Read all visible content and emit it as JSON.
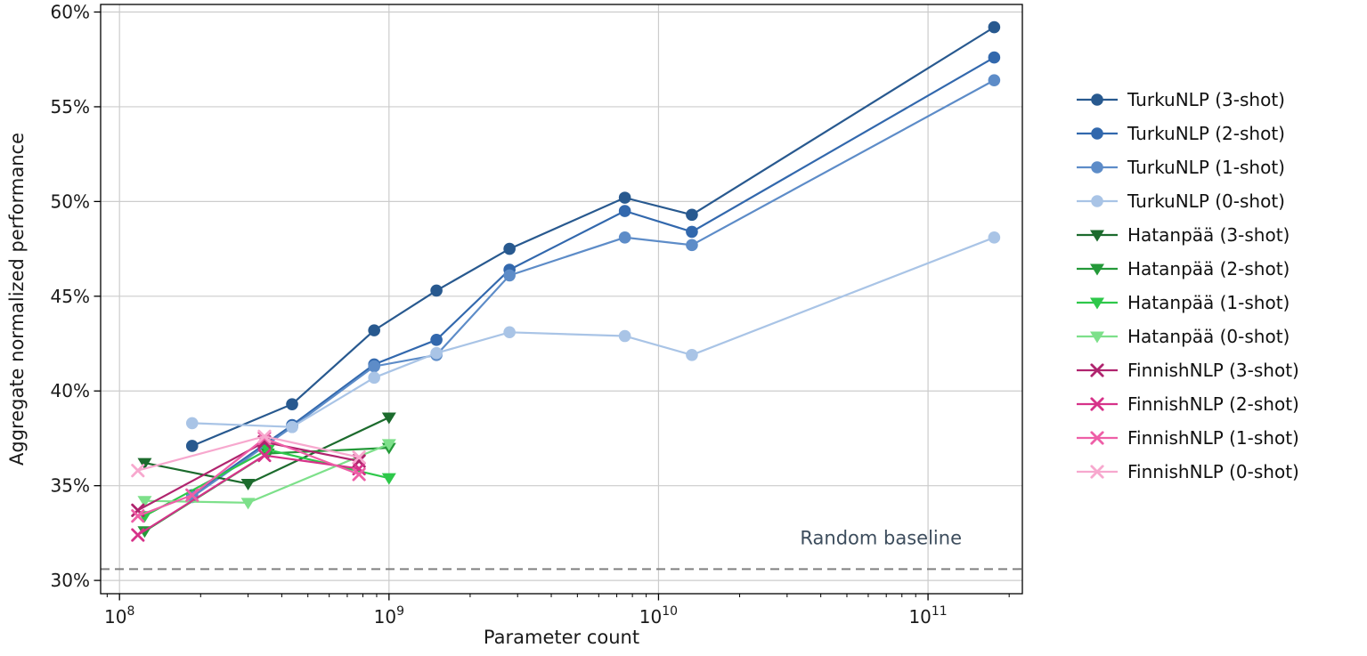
{
  "chart_data": {
    "type": "line",
    "title": "",
    "xlabel": "Parameter count",
    "ylabel": "Aggregate normalized performance",
    "x_scale": "log",
    "x_range_log": [
      7.93,
      11.35
    ],
    "x_major_ticks_exp": [
      8,
      9,
      10,
      11
    ],
    "ylim": [
      29.3,
      60.4
    ],
    "y_ticks": [
      30,
      35,
      40,
      45,
      50,
      55,
      60
    ],
    "y_tick_suffix": "%",
    "grid": true,
    "grid_color": "#cccccc",
    "axis_color": "#000000",
    "legend_position": "right",
    "baseline": {
      "value": 30.6,
      "label": "Random baseline",
      "line_color": "#808080",
      "label_color": "#3d4d5d"
    },
    "series": [
      {
        "name": "TurkuNLP (3-shot)",
        "color": "#28598f",
        "marker": "circle",
        "x": [
          186000000,
          437000000,
          881000000,
          1500000000,
          2800000000,
          7500000000,
          13300000000,
          176000000000
        ],
        "y": [
          37.1,
          39.3,
          43.2,
          45.3,
          47.5,
          50.2,
          49.3,
          59.2
        ]
      },
      {
        "name": "TurkuNLP (2-shot)",
        "color": "#3268ad",
        "marker": "circle",
        "x": [
          186000000,
          437000000,
          881000000,
          1500000000,
          2800000000,
          7500000000,
          13300000000,
          176000000000
        ],
        "y": [
          34.5,
          38.2,
          41.4,
          42.7,
          46.4,
          49.5,
          48.4,
          57.6
        ]
      },
      {
        "name": "TurkuNLP (1-shot)",
        "color": "#5d8cc8",
        "marker": "circle",
        "x": [
          186000000,
          437000000,
          881000000,
          1500000000,
          2800000000,
          7500000000,
          13300000000,
          176000000000
        ],
        "y": [
          34.4,
          38.1,
          41.3,
          41.9,
          46.1,
          48.1,
          47.7,
          56.4
        ]
      },
      {
        "name": "TurkuNLP (0-shot)",
        "color": "#a9c4e6",
        "marker": "circle",
        "x": [
          186000000,
          437000000,
          881000000,
          1500000000,
          2800000000,
          7500000000,
          13300000000,
          176000000000
        ],
        "y": [
          38.3,
          38.1,
          40.7,
          42.0,
          43.1,
          42.9,
          41.9,
          48.1
        ]
      },
      {
        "name": "Hatanpää (3-shot)",
        "color": "#1c6b2d",
        "marker": "triangle-down",
        "x": [
          124000000,
          300000000,
          1000000000
        ],
        "y": [
          36.2,
          35.1,
          38.6
        ]
      },
      {
        "name": "Hatanpää (2-shot)",
        "color": "#249939",
        "marker": "triangle-down",
        "x": [
          124000000,
          355000000,
          1000000000
        ],
        "y": [
          32.6,
          36.7,
          37.0
        ]
      },
      {
        "name": "Hatanpää (1-shot)",
        "color": "#2ec84a",
        "marker": "triangle-down",
        "x": [
          124000000,
          355000000,
          1000000000
        ],
        "y": [
          33.4,
          36.9,
          35.4
        ]
      },
      {
        "name": "Hatanpää (0-shot)",
        "color": "#7de08a",
        "marker": "triangle-down",
        "x": [
          124000000,
          300000000,
          1000000000
        ],
        "y": [
          34.2,
          34.1,
          37.2
        ]
      },
      {
        "name": "FinnishNLP (3-shot)",
        "color": "#b0246e",
        "marker": "x",
        "x": [
          117000000,
          345000000,
          774000000
        ],
        "y": [
          33.7,
          37.3,
          36.3
        ]
      },
      {
        "name": "FinnishNLP (2-shot)",
        "color": "#d63289",
        "marker": "x",
        "x": [
          117000000,
          345000000,
          774000000
        ],
        "y": [
          32.4,
          36.6,
          35.9
        ]
      },
      {
        "name": "FinnishNLP (1-shot)",
        "color": "#ee5fa7",
        "marker": "x",
        "x": [
          117000000,
          186000000,
          345000000,
          774000000
        ],
        "y": [
          33.4,
          34.5,
          37.5,
          35.6
        ]
      },
      {
        "name": "FinnishNLP (0-shot)",
        "color": "#f7a8ce",
        "marker": "x",
        "x": [
          117000000,
          345000000,
          774000000
        ],
        "y": [
          35.8,
          37.6,
          36.5
        ]
      }
    ]
  }
}
